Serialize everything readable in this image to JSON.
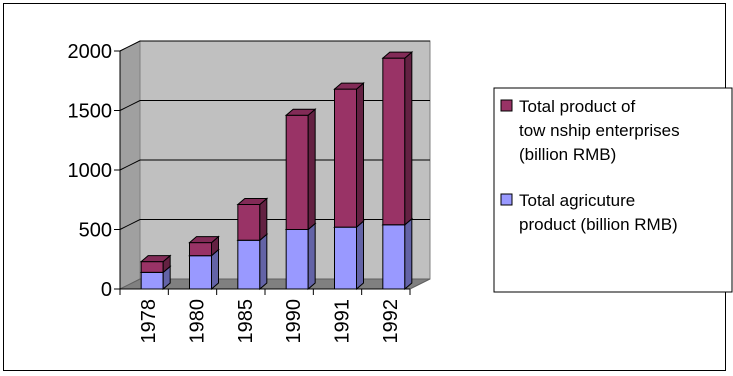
{
  "chart_data": {
    "type": "bar",
    "stacked": true,
    "three_d": true,
    "categories": [
      "1978",
      "1980",
      "1985",
      "1990",
      "1991",
      "1992"
    ],
    "series": [
      {
        "name": "Total agricuture product (billion RMB)",
        "values": [
          140,
          280,
          410,
          500,
          520,
          540
        ],
        "color": "#9999ff"
      },
      {
        "name": "Total  product of tow nship enterprises (billion RMB)",
        "values": [
          90,
          110,
          300,
          960,
          1160,
          1400
        ],
        "color": "#993366"
      }
    ],
    "yticks": [
      "0",
      "500",
      "1000",
      "1500",
      "2000"
    ],
    "ylim": [
      0,
      2000
    ],
    "grid": true,
    "legend_position": "right",
    "legend": [
      {
        "lines": [
          "Total  product of",
          "tow nship enterprises",
          "(billion RMB)"
        ],
        "color": "#993366"
      },
      {
        "lines": [
          "Total agricuture",
          "product (billion RMB)"
        ],
        "color": "#9999ff"
      }
    ],
    "title": "",
    "xlabel": "",
    "ylabel": ""
  }
}
